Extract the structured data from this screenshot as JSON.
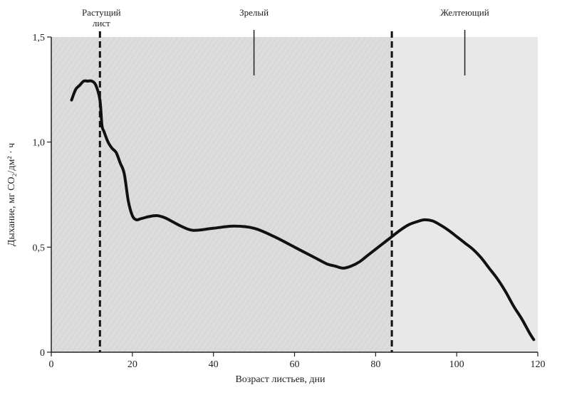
{
  "chart_data": {
    "type": "line",
    "title": "",
    "xlabel": "Возраст листьев, дни",
    "ylabel": "Дыхание, мг CO₂/дм² · ч",
    "xlim": [
      0,
      120
    ],
    "ylim": [
      0,
      1.5
    ],
    "xticks": [
      0,
      20,
      40,
      60,
      80,
      100,
      120
    ],
    "xtick_labels": [
      "0",
      "20",
      "40",
      "60",
      "80",
      "100",
      "120"
    ],
    "yticks": [
      0,
      0.5,
      1.0,
      1.5
    ],
    "ytick_labels": [
      "0",
      "0,5",
      "1,0",
      "1,5"
    ],
    "grid": false,
    "series": [
      {
        "x": [
          5,
          6,
          7,
          8,
          9,
          10,
          11,
          12,
          12.5,
          13,
          14,
          15,
          16,
          17,
          18,
          19,
          20,
          21,
          22,
          23,
          24,
          26,
          28,
          30,
          32,
          35,
          40,
          45,
          50,
          55,
          60,
          65,
          68,
          70,
          72,
          74,
          76,
          78,
          80,
          82,
          84,
          86,
          88,
          90,
          92,
          94,
          96,
          98,
          100,
          102,
          104,
          106,
          108,
          110,
          112,
          114,
          116,
          118,
          119
        ],
        "y": [
          1.2,
          1.25,
          1.27,
          1.29,
          1.29,
          1.29,
          1.27,
          1.2,
          1.08,
          1.05,
          1.0,
          0.97,
          0.95,
          0.9,
          0.85,
          0.72,
          0.65,
          0.63,
          0.635,
          0.64,
          0.645,
          0.65,
          0.64,
          0.62,
          0.6,
          0.58,
          0.59,
          0.6,
          0.59,
          0.55,
          0.5,
          0.45,
          0.42,
          0.41,
          0.4,
          0.41,
          0.43,
          0.46,
          0.49,
          0.52,
          0.55,
          0.58,
          0.605,
          0.62,
          0.63,
          0.625,
          0.605,
          0.58,
          0.55,
          0.52,
          0.49,
          0.45,
          0.4,
          0.35,
          0.29,
          0.22,
          0.16,
          0.09,
          0.06
        ]
      }
    ],
    "phase_boundaries": [
      12,
      84
    ],
    "phases": [
      {
        "label_lines": [
          "Растущий",
          "лист"
        ],
        "x": 6
      },
      {
        "label_lines": [
          "Зрелый"
        ],
        "x": 50
      },
      {
        "label_lines": [
          "Желтеющий"
        ],
        "x": 102
      }
    ],
    "colors": {
      "line": "#111111",
      "background_early": "#dcdcdc",
      "background_late": "#e8e8e8",
      "axis": "#222222"
    }
  }
}
